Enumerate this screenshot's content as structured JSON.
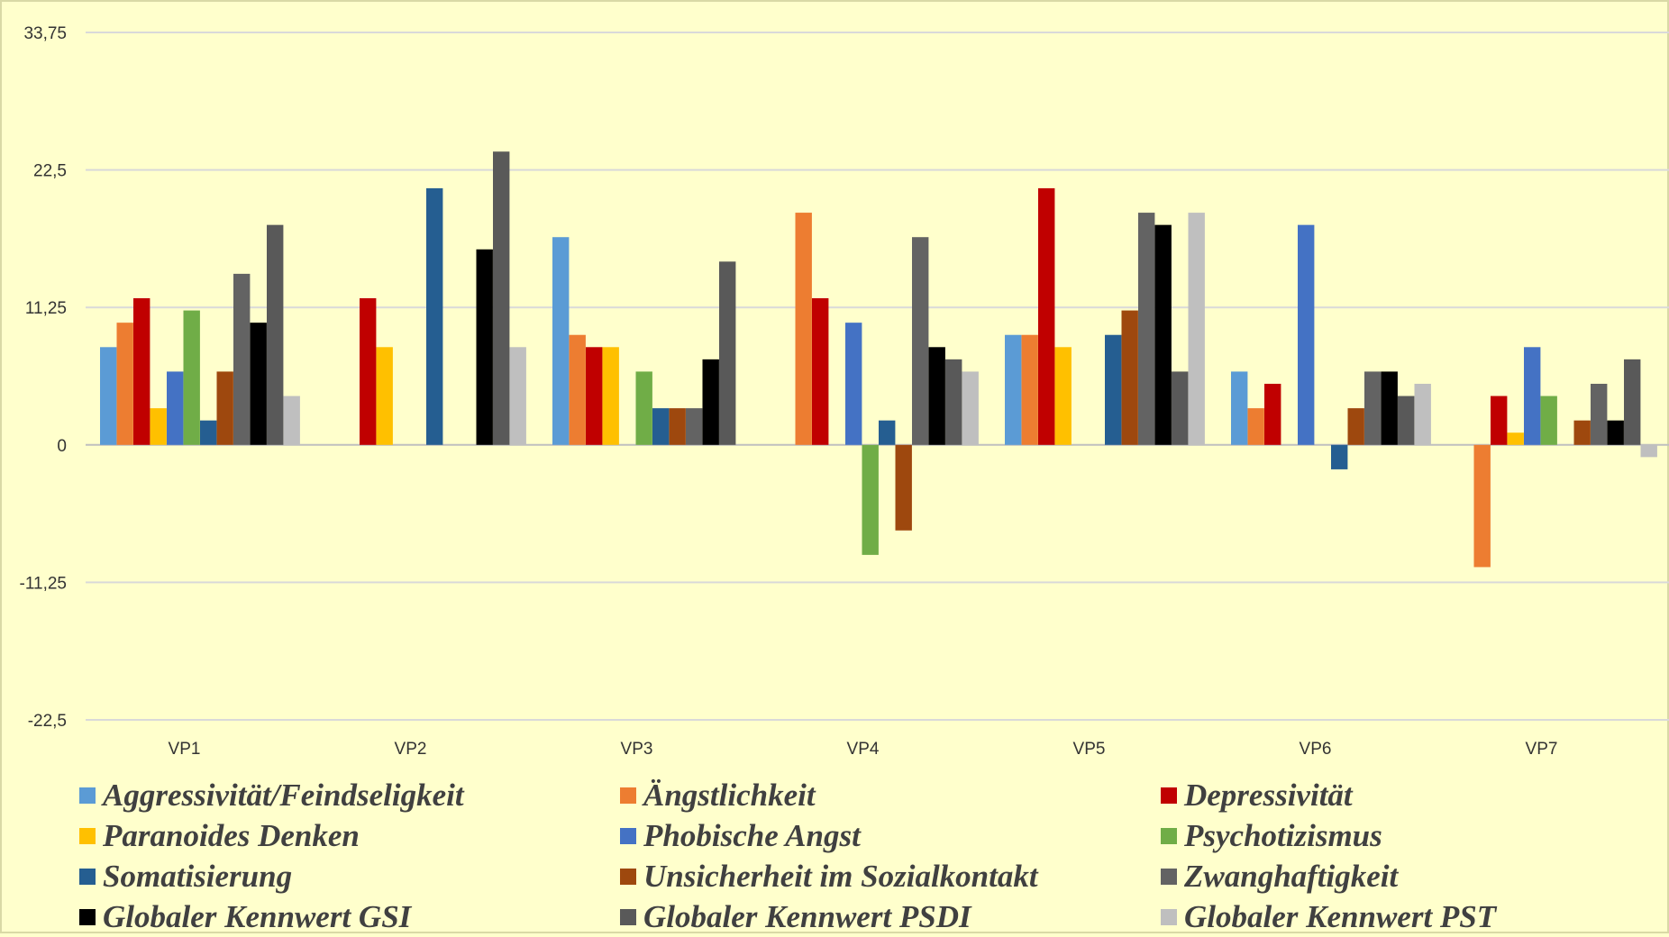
{
  "chart_data": {
    "type": "bar",
    "categories": [
      "VP1",
      "VP2",
      "VP3",
      "VP4",
      "VP5",
      "VP6",
      "VP7"
    ],
    "ylim": [
      -22.5,
      33.75
    ],
    "yticks": [
      33.75,
      22.5,
      11.25,
      0,
      -11.25,
      -22.5
    ],
    "ytick_labels": [
      "33,75",
      "22,5",
      "11,25",
      "0",
      "-11,25",
      "-22,5"
    ],
    "grid": true,
    "legend_position": "bottom",
    "series": [
      {
        "name": "Aggressivität/Feindseligkeit",
        "color": "#5b9bd5",
        "values": [
          8,
          0,
          17,
          0,
          9,
          6,
          0
        ]
      },
      {
        "name": "Ängstlichkeit",
        "color": "#ed7d31",
        "values": [
          10,
          0,
          9,
          19,
          9,
          3,
          -10
        ]
      },
      {
        "name": "Depressivität",
        "color": "#c00000",
        "values": [
          12,
          12,
          8,
          12,
          21,
          5,
          4
        ]
      },
      {
        "name": "Paranoides Denken",
        "color": "#ffc000",
        "values": [
          3,
          8,
          8,
          0,
          8,
          0,
          1
        ]
      },
      {
        "name": "Phobische Angst",
        "color": "#4472c4",
        "values": [
          6,
          0,
          0,
          10,
          0,
          18,
          8
        ]
      },
      {
        "name": "Psychotizismus",
        "color": "#70ad47",
        "values": [
          11,
          0,
          6,
          -9,
          0,
          0,
          4
        ]
      },
      {
        "name": "Somatisierung",
        "color": "#255e91",
        "values": [
          2,
          21,
          3,
          2,
          9,
          -2,
          0
        ]
      },
      {
        "name": "Unsicherheit im Sozialkontakt",
        "color": "#9e480e",
        "values": [
          6,
          0,
          3,
          -7,
          11,
          3,
          2
        ]
      },
      {
        "name": "Zwanghaftigkeit",
        "color": "#636363",
        "values": [
          14,
          0,
          3,
          17,
          19,
          6,
          5
        ]
      },
      {
        "name": "Globaler Kennwert GSI",
        "color": "#000000",
        "values": [
          10,
          16,
          7,
          8,
          18,
          6,
          2
        ]
      },
      {
        "name": "Globaler Kennwert PSDI",
        "color": "#595959",
        "values": [
          18,
          24,
          15,
          7,
          6,
          4,
          7
        ]
      },
      {
        "name": "Globaler Kennwert PST",
        "color": "#bfbfbf",
        "values": [
          4,
          8,
          0,
          6,
          19,
          5,
          -1
        ]
      }
    ]
  }
}
